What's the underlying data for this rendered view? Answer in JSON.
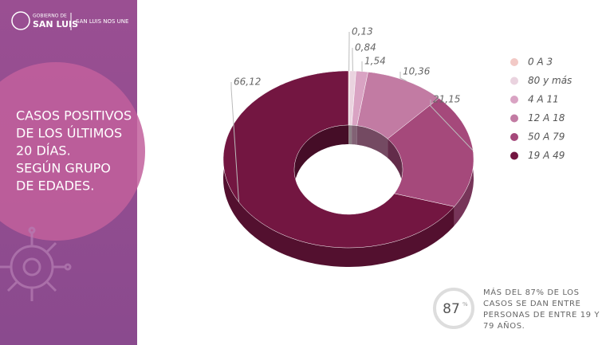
{
  "header": {
    "org_small": "GOBIERNO DE",
    "org": "SAN LUIS",
    "slogan": "SAN LUIS NOS UNE"
  },
  "chart_data": {
    "type": "donut3d",
    "title": [
      "CASOS POSITIVOS",
      "DE LOS ÚLTIMOS",
      "20 DÍAS.",
      "SEGÚN GRUPO",
      "DE EDADES."
    ],
    "categories": [
      "0 A 3",
      "80 y más",
      "4 A 11",
      "12 A 18",
      "50 A 79",
      "19 A 49"
    ],
    "values": [
      0.13,
      0.84,
      1.54,
      10.36,
      21.15,
      66.12
    ],
    "value_labels": [
      "0,13",
      "0,84",
      "1,54",
      "10,36",
      "21,15",
      "66,12"
    ],
    "colors": [
      "#f2c9c6",
      "#ead3df",
      "#d9a3c3",
      "#c27ba3",
      "#a5497b",
      "#731641"
    ],
    "legend": "right"
  },
  "highlight": {
    "value": 87,
    "unit": "%",
    "text": [
      "MÁS DEL 87% DE LOS",
      "CASOS SE DAN ENTRE",
      "PERSONAS DE ENTRE 19 Y",
      "79 AÑOS."
    ]
  }
}
